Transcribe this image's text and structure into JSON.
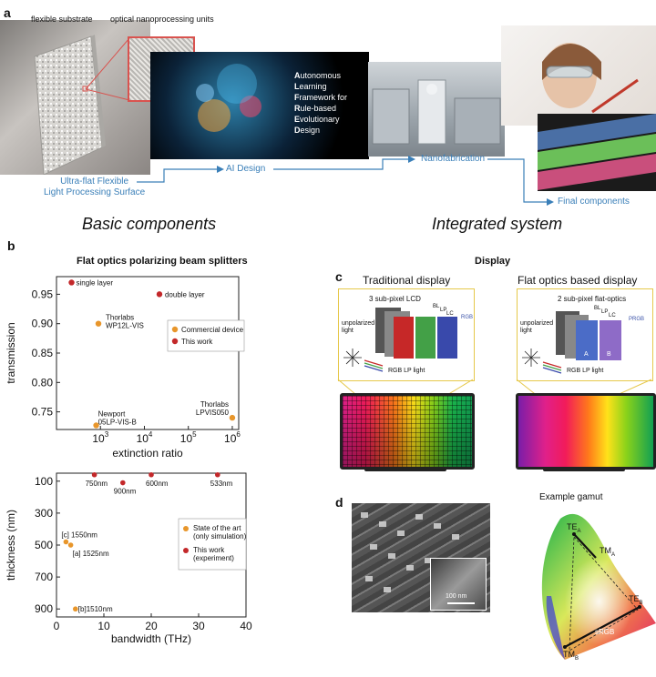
{
  "panel_a": {
    "letter": "a",
    "label_substrate": "flexible substrate",
    "label_units": "optical nanoprocessing units",
    "surface_line1": "Ultra-flat Flexible",
    "surface_line2": "Light Processing Surface",
    "ai_design": "AI Design",
    "nanofab": "Nanofabrication",
    "final": "Final components",
    "alfred": [
      {
        "initial": "A",
        "rest": "utonomous"
      },
      {
        "initial": "L",
        "rest": "earning"
      },
      {
        "initial": "F",
        "rest": "ramework for"
      },
      {
        "initial": "R",
        "rest": "ule-based"
      },
      {
        "initial": "E",
        "rest": "volutionary"
      },
      {
        "initial": "D",
        "rest": "esign"
      }
    ]
  },
  "section_titles": {
    "basic": "Basic components",
    "integrated": "Integrated system"
  },
  "panel_b": {
    "letter": "b",
    "title": "Flat optics polarizing beam splitters"
  },
  "panel_c": {
    "letter": "c",
    "title": "Display",
    "traditional": "Traditional display",
    "flat": "Flat optics based display",
    "trad_lcd": "3 sub-pixel LCD",
    "flat_lcd": "2 sub-pixel flat-optics",
    "unpolarized": "unpolarized",
    "light": "light",
    "rgb_lp_light": "RGB LP light",
    "bl": "BL",
    "lp": "LP",
    "lc": "LC",
    "rgb": "RGB",
    "prgb": "PRGB",
    "a": "A",
    "b": "B"
  },
  "panel_d": {
    "letter": "d",
    "scale": "100 nm",
    "gamut_title": "Example gamut",
    "te_a": "TE",
    "tm_a": "TM",
    "te_b": "TE",
    "tm_b": "TM",
    "sub_a": "A",
    "sub_b": "B",
    "srgb": "sRGB"
  },
  "chart_data": [
    {
      "type": "scatter",
      "xlabel": "extinction ratio",
      "ylabel": "transmission",
      "xscale": "log",
      "xlim": [
        100,
        1400000
      ],
      "ylim": [
        0.72,
        0.98
      ],
      "xticks": [
        {
          "v": 1000,
          "label": "10^3"
        },
        {
          "v": 10000,
          "label": "10^4"
        },
        {
          "v": 100000,
          "label": "10^5"
        },
        {
          "v": 1000000,
          "label": "10^6"
        }
      ],
      "yticks": [
        0.75,
        0.8,
        0.85,
        0.9,
        0.95
      ],
      "legend": [
        {
          "name": "Commercial device",
          "color": "#e8962b"
        },
        {
          "name": "This work",
          "color": "#c3282a"
        }
      ],
      "legend_position": "right",
      "points": [
        {
          "x": 220,
          "y": 0.97,
          "label": "single layer",
          "series": "This work"
        },
        {
          "x": 22000,
          "y": 0.95,
          "label": "double layer",
          "series": "This work"
        },
        {
          "x": 900,
          "y": 0.9,
          "label": "Thorlabs\nWP12L-VIS",
          "series": "Commercial device"
        },
        {
          "x": 800,
          "y": 0.727,
          "label": "Newport\n05LP-VIS-B",
          "series": "Commercial device"
        },
        {
          "x": 1000000,
          "y": 0.74,
          "label": "Thorlabs\nLPVIS050",
          "series": "Commercial device"
        }
      ]
    },
    {
      "type": "scatter",
      "xlabel": "bandwidth (THz)",
      "ylabel": "thickness (nm)",
      "xlim": [
        0,
        40
      ],
      "ylim": [
        950,
        50
      ],
      "xticks": [
        0,
        10,
        20,
        30,
        40
      ],
      "yticks": [
        100,
        300,
        500,
        700,
        900
      ],
      "legend": [
        {
          "name": "State of the art\n(only simulation)",
          "color": "#e8962b"
        },
        {
          "name": "This work\n(experiment)",
          "color": "#c3282a"
        }
      ],
      "legend_position": "right",
      "points": [
        {
          "x": 8,
          "y": 60,
          "label": "750nm",
          "series": "This work"
        },
        {
          "x": 14,
          "y": 110,
          "label": "900nm",
          "series": "This work"
        },
        {
          "x": 20,
          "y": 60,
          "label": "600nm",
          "series": "This work"
        },
        {
          "x": 34,
          "y": 60,
          "label": "533nm",
          "series": "This work"
        },
        {
          "x": 2,
          "y": 480,
          "label": "[c] 1550nm",
          "series": "State of the art"
        },
        {
          "x": 3,
          "y": 500,
          "label": "[a] 1525nm",
          "series": "State of the art"
        },
        {
          "x": 4,
          "y": 900,
          "label": "[b]1510nm",
          "series": "State of the art"
        }
      ]
    }
  ]
}
